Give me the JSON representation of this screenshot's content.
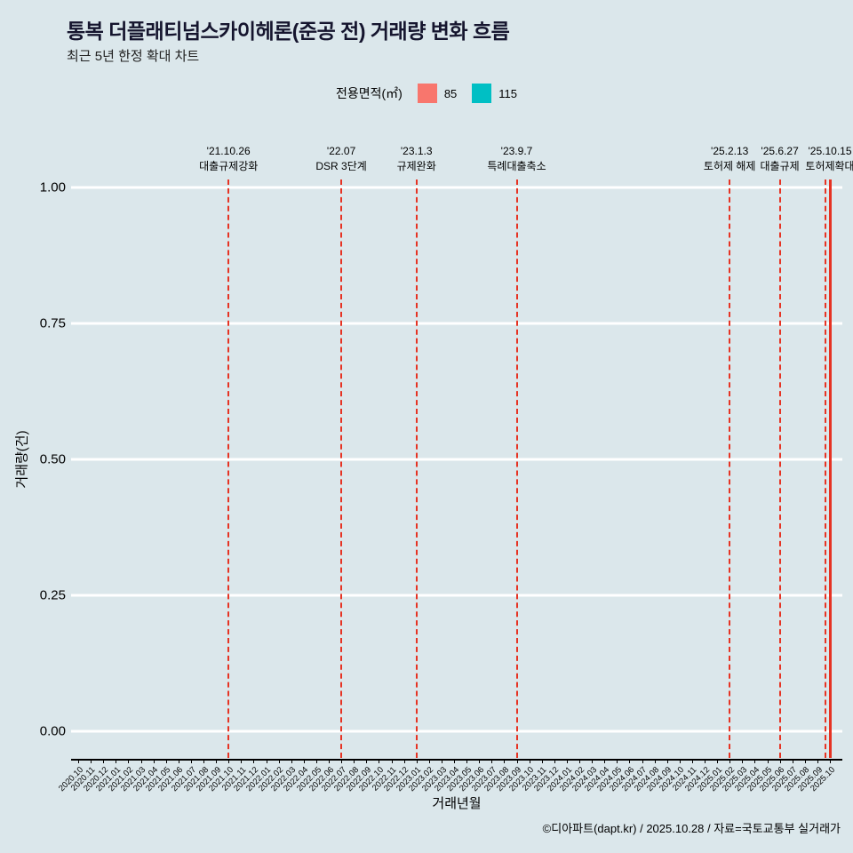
{
  "header": {
    "title": "통복 더플래티넘스카이헤론(준공 전) 거래량 변화 흐름",
    "subtitle": "최근 5년 한정 확대 차트"
  },
  "legend": {
    "label": "전용면적(㎡)",
    "items": [
      {
        "label": "85",
        "color": "#f8766d"
      },
      {
        "label": "115",
        "color": "#00bfc4"
      }
    ]
  },
  "chart_data": {
    "type": "line",
    "title": "통복 더플래티넘스카이헤론(준공 전) 거래량 변화 흐름",
    "xlabel": "거래년월",
    "ylabel": "거래량(건)",
    "ylim": [
      0,
      1
    ],
    "yticks": [
      "0.00",
      "0.25",
      "0.50",
      "0.75",
      "1.00"
    ],
    "grid": "horizontal-only",
    "legend_position": "top-center",
    "categories": [
      "2020.10",
      "2020.11",
      "2020.12",
      "2021.01",
      "2021.02",
      "2021.03",
      "2021.04",
      "2021.05",
      "2021.06",
      "2021.07",
      "2021.08",
      "2021.09",
      "2021.10",
      "2021.11",
      "2021.12",
      "2022.01",
      "2022.02",
      "2022.03",
      "2022.04",
      "2022.05",
      "2022.06",
      "2022.07",
      "2022.08",
      "2022.09",
      "2022.10",
      "2022.11",
      "2022.12",
      "2023.01",
      "2023.02",
      "2023.03",
      "2023.04",
      "2023.05",
      "2023.06",
      "2023.07",
      "2023.08",
      "2023.09",
      "2023.10",
      "2023.11",
      "2023.12",
      "2024.01",
      "2024.02",
      "2024.03",
      "2024.04",
      "2024.05",
      "2024.06",
      "2024.07",
      "2024.08",
      "2024.09",
      "2024.10",
      "2024.11",
      "2024.12",
      "2025.01",
      "2025.02",
      "2025.03",
      "2025.04",
      "2025.05",
      "2025.06",
      "2025.07",
      "2025.08",
      "2025.09",
      "2025.10"
    ],
    "series": [
      {
        "name": "85",
        "values": []
      },
      {
        "name": "115",
        "values": []
      }
    ],
    "events": [
      {
        "month": "2021.10",
        "date_label": "'21.10.26",
        "label": "대출규제강화",
        "line": "dashed"
      },
      {
        "month": "2022.07",
        "date_label": "'22.07",
        "label": "DSR 3단계",
        "line": "dashed"
      },
      {
        "month": "2023.01",
        "date_label": "'23.1.3",
        "label": "규제완화",
        "line": "dashed"
      },
      {
        "month": "2023.09",
        "date_label": "'23.9.7",
        "label": "특례대출축소",
        "line": "dashed"
      },
      {
        "month": "2025.02",
        "date_label": "'25.2.13",
        "label": "토허제 해제",
        "line": "dashed"
      },
      {
        "month": "2025.06",
        "date_label": "'25.6.27",
        "label": "대출규제",
        "line": "dashed"
      },
      {
        "month": "2025.10",
        "date_label": "'25.10.15",
        "label": "토허제확대",
        "line": "solid"
      }
    ]
  },
  "colors": {
    "background": "#dbe7eb",
    "title": "#15152e",
    "text": "#000000",
    "grid": "#ffffff",
    "axis": "#000000",
    "event_line": "#e63323",
    "series_85": "#f8766d",
    "series_115": "#00bfc4"
  },
  "footer": {
    "credit": "©디아파트(dapt.kr) / 2025.10.28 / 자료=국토교통부 실거래가"
  }
}
